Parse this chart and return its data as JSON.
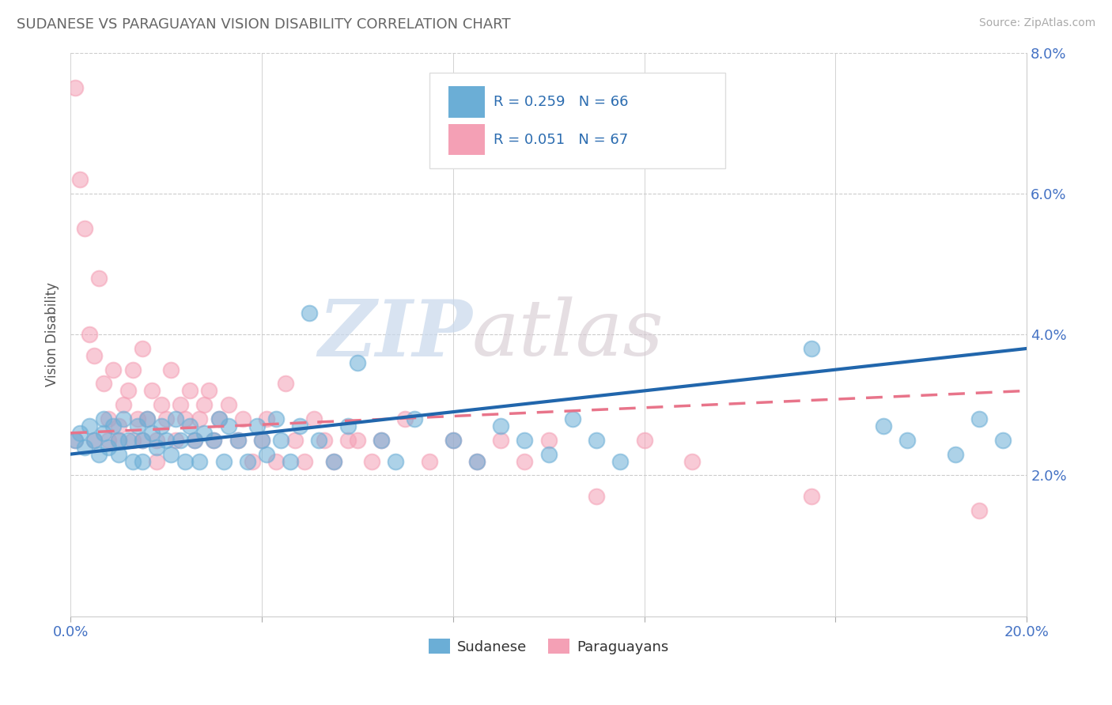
{
  "title": "SUDANESE VS PARAGUAYAN VISION DISABILITY CORRELATION CHART",
  "source": "Source: ZipAtlas.com",
  "ylabel": "Vision Disability",
  "xlim": [
    0,
    0.2
  ],
  "ylim": [
    0,
    0.08
  ],
  "xticks": [
    0.0,
    0.04,
    0.08,
    0.12,
    0.16,
    0.2
  ],
  "yticks": [
    0.0,
    0.02,
    0.04,
    0.06,
    0.08
  ],
  "xticklabels": [
    "0.0%",
    "",
    "",
    "",
    "",
    "20.0%"
  ],
  "yticklabels": [
    "",
    "2.0%",
    "4.0%",
    "6.0%",
    "8.0%"
  ],
  "sudanese_color": "#6baed6",
  "paraguayan_color": "#f4a0b5",
  "sudanese_R": 0.259,
  "sudanese_N": 66,
  "paraguayan_R": 0.051,
  "paraguayan_N": 67,
  "watermark_zip": "ZIP",
  "watermark_atlas": "atlas",
  "background_color": "#ffffff",
  "grid_color": "#cccccc",
  "sud_trend_start_y": 0.023,
  "sud_trend_end_y": 0.038,
  "par_trend_start_y": 0.026,
  "par_trend_end_y": 0.032,
  "sudanese_x": [
    0.001,
    0.002,
    0.003,
    0.004,
    0.005,
    0.006,
    0.007,
    0.007,
    0.008,
    0.009,
    0.01,
    0.01,
    0.011,
    0.012,
    0.013,
    0.014,
    0.015,
    0.015,
    0.016,
    0.017,
    0.018,
    0.019,
    0.02,
    0.021,
    0.022,
    0.023,
    0.024,
    0.025,
    0.026,
    0.027,
    0.028,
    0.03,
    0.031,
    0.032,
    0.033,
    0.035,
    0.037,
    0.039,
    0.04,
    0.041,
    0.043,
    0.044,
    0.046,
    0.048,
    0.05,
    0.052,
    0.055,
    0.058,
    0.06,
    0.065,
    0.068,
    0.072,
    0.08,
    0.085,
    0.09,
    0.095,
    0.1,
    0.105,
    0.11,
    0.115,
    0.155,
    0.17,
    0.175,
    0.185,
    0.19,
    0.195
  ],
  "sudanese_y": [
    0.025,
    0.026,
    0.024,
    0.027,
    0.025,
    0.023,
    0.028,
    0.026,
    0.024,
    0.027,
    0.025,
    0.023,
    0.028,
    0.025,
    0.022,
    0.027,
    0.025,
    0.022,
    0.028,
    0.026,
    0.024,
    0.027,
    0.025,
    0.023,
    0.028,
    0.025,
    0.022,
    0.027,
    0.025,
    0.022,
    0.026,
    0.025,
    0.028,
    0.022,
    0.027,
    0.025,
    0.022,
    0.027,
    0.025,
    0.023,
    0.028,
    0.025,
    0.022,
    0.027,
    0.043,
    0.025,
    0.022,
    0.027,
    0.036,
    0.025,
    0.022,
    0.028,
    0.025,
    0.022,
    0.027,
    0.025,
    0.023,
    0.028,
    0.025,
    0.022,
    0.038,
    0.027,
    0.025,
    0.023,
    0.028,
    0.025
  ],
  "paraguayan_x": [
    0.001,
    0.001,
    0.002,
    0.003,
    0.004,
    0.005,
    0.005,
    0.006,
    0.007,
    0.008,
    0.008,
    0.009,
    0.01,
    0.01,
    0.011,
    0.012,
    0.013,
    0.013,
    0.014,
    0.015,
    0.015,
    0.016,
    0.017,
    0.018,
    0.018,
    0.019,
    0.02,
    0.021,
    0.022,
    0.023,
    0.024,
    0.025,
    0.026,
    0.027,
    0.028,
    0.029,
    0.03,
    0.031,
    0.033,
    0.035,
    0.036,
    0.038,
    0.04,
    0.041,
    0.043,
    0.045,
    0.047,
    0.049,
    0.051,
    0.053,
    0.055,
    0.058,
    0.06,
    0.063,
    0.065,
    0.07,
    0.075,
    0.08,
    0.085,
    0.09,
    0.095,
    0.1,
    0.11,
    0.12,
    0.13,
    0.155,
    0.19
  ],
  "paraguayan_y": [
    0.075,
    0.025,
    0.062,
    0.055,
    0.04,
    0.037,
    0.025,
    0.048,
    0.033,
    0.028,
    0.025,
    0.035,
    0.027,
    0.025,
    0.03,
    0.032,
    0.035,
    0.025,
    0.028,
    0.025,
    0.038,
    0.028,
    0.032,
    0.025,
    0.022,
    0.03,
    0.028,
    0.035,
    0.025,
    0.03,
    0.028,
    0.032,
    0.025,
    0.028,
    0.03,
    0.032,
    0.025,
    0.028,
    0.03,
    0.025,
    0.028,
    0.022,
    0.025,
    0.028,
    0.022,
    0.033,
    0.025,
    0.022,
    0.028,
    0.025,
    0.022,
    0.025,
    0.025,
    0.022,
    0.025,
    0.028,
    0.022,
    0.025,
    0.022,
    0.025,
    0.022,
    0.025,
    0.017,
    0.025,
    0.022,
    0.017,
    0.015
  ]
}
